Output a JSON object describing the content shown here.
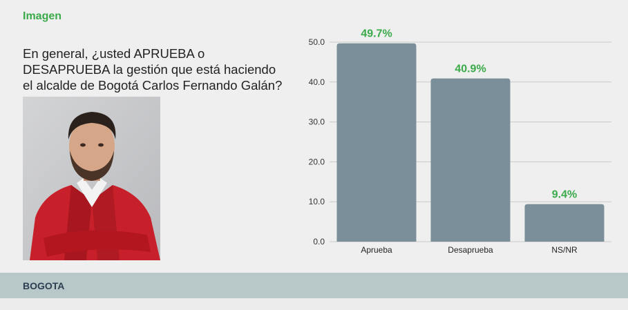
{
  "section": {
    "title": "Imagen"
  },
  "question": "En general, ¿usted APRUEBA o DESAPRUEBA la gestión que está haciendo el alcalde de Bogotá Carlos Fernando Galán?",
  "footer": {
    "label": "BOGOTA"
  },
  "colors": {
    "accent": "#3aaa4a",
    "bar": "#7a8f99",
    "footer": "#b8c8c8"
  },
  "chart_data": {
    "type": "bar",
    "categories": [
      "Aprueba",
      "Desaprueba",
      "NS/NR"
    ],
    "values": [
      49.7,
      40.9,
      9.4
    ],
    "value_labels": [
      "49.7%",
      "40.9%",
      "9.4%"
    ],
    "yticks": [
      "0.0",
      "10.0",
      "20.0",
      "30.0",
      "40.0",
      "50.0"
    ],
    "ylim": [
      0,
      50
    ],
    "grid": true,
    "legend": "none"
  }
}
